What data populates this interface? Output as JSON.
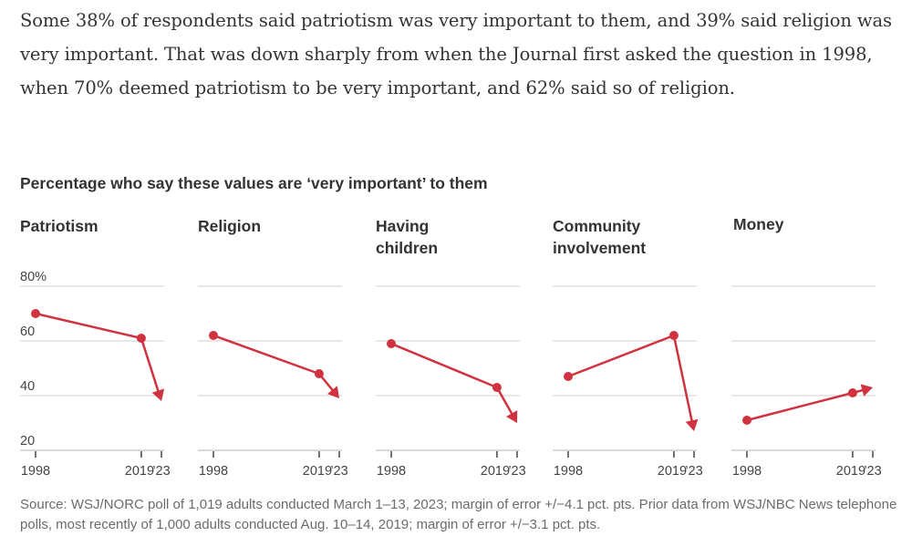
{
  "article": {
    "paragraph": "Some 38% of respondents said patriotism was very important to them, and 39% said religion was very important. That was down sharply from when the Journal first asked the question in 1998, when 70% deemed patriotism to be very important, and 62% said so of religion."
  },
  "colors": {
    "line": "#d0323f",
    "grid": "#e8e8e8",
    "text": "#333333",
    "muted": "#6b6b6b"
  },
  "chart_data": {
    "type": "line",
    "title": "Percentage who say these values are ‘very important’ to them",
    "xlabel": "",
    "ylabel": "",
    "ylim": [
      20,
      80
    ],
    "y_ticks": [
      20,
      40,
      60,
      80
    ],
    "y_tick_labels": [
      "20",
      "40",
      "60",
      "80%"
    ],
    "x": [
      1998,
      2019,
      2023
    ],
    "x_tick_labels": [
      "1998",
      "2019",
      "’23"
    ],
    "grid": true,
    "legend": "none",
    "panels": [
      {
        "name": "Patriotism",
        "values": [
          70,
          61,
          38
        ]
      },
      {
        "name": "Religion",
        "values": [
          62,
          48,
          39
        ]
      },
      {
        "name": "Having children",
        "values": [
          59,
          43,
          30
        ]
      },
      {
        "name": "Community involvement",
        "values": [
          47,
          62,
          27
        ]
      },
      {
        "name": "Money",
        "values": [
          31,
          41,
          43
        ]
      }
    ]
  },
  "panel_titles": [
    [
      "Patriotism"
    ],
    [
      "Religion"
    ],
    [
      "Having",
      "children"
    ],
    [
      "Community",
      "involvement"
    ],
    [
      "Money"
    ]
  ],
  "source": "Source: WSJ/NORC poll of 1,019 adults conducted March 1–13, 2023; margin of error +/−4.1 pct. pts. Prior data from WSJ/NBC News telephone polls, most recently of 1,000 adults conducted Aug. 10–14, 2019; margin of error +/−3.1 pct. pts."
}
